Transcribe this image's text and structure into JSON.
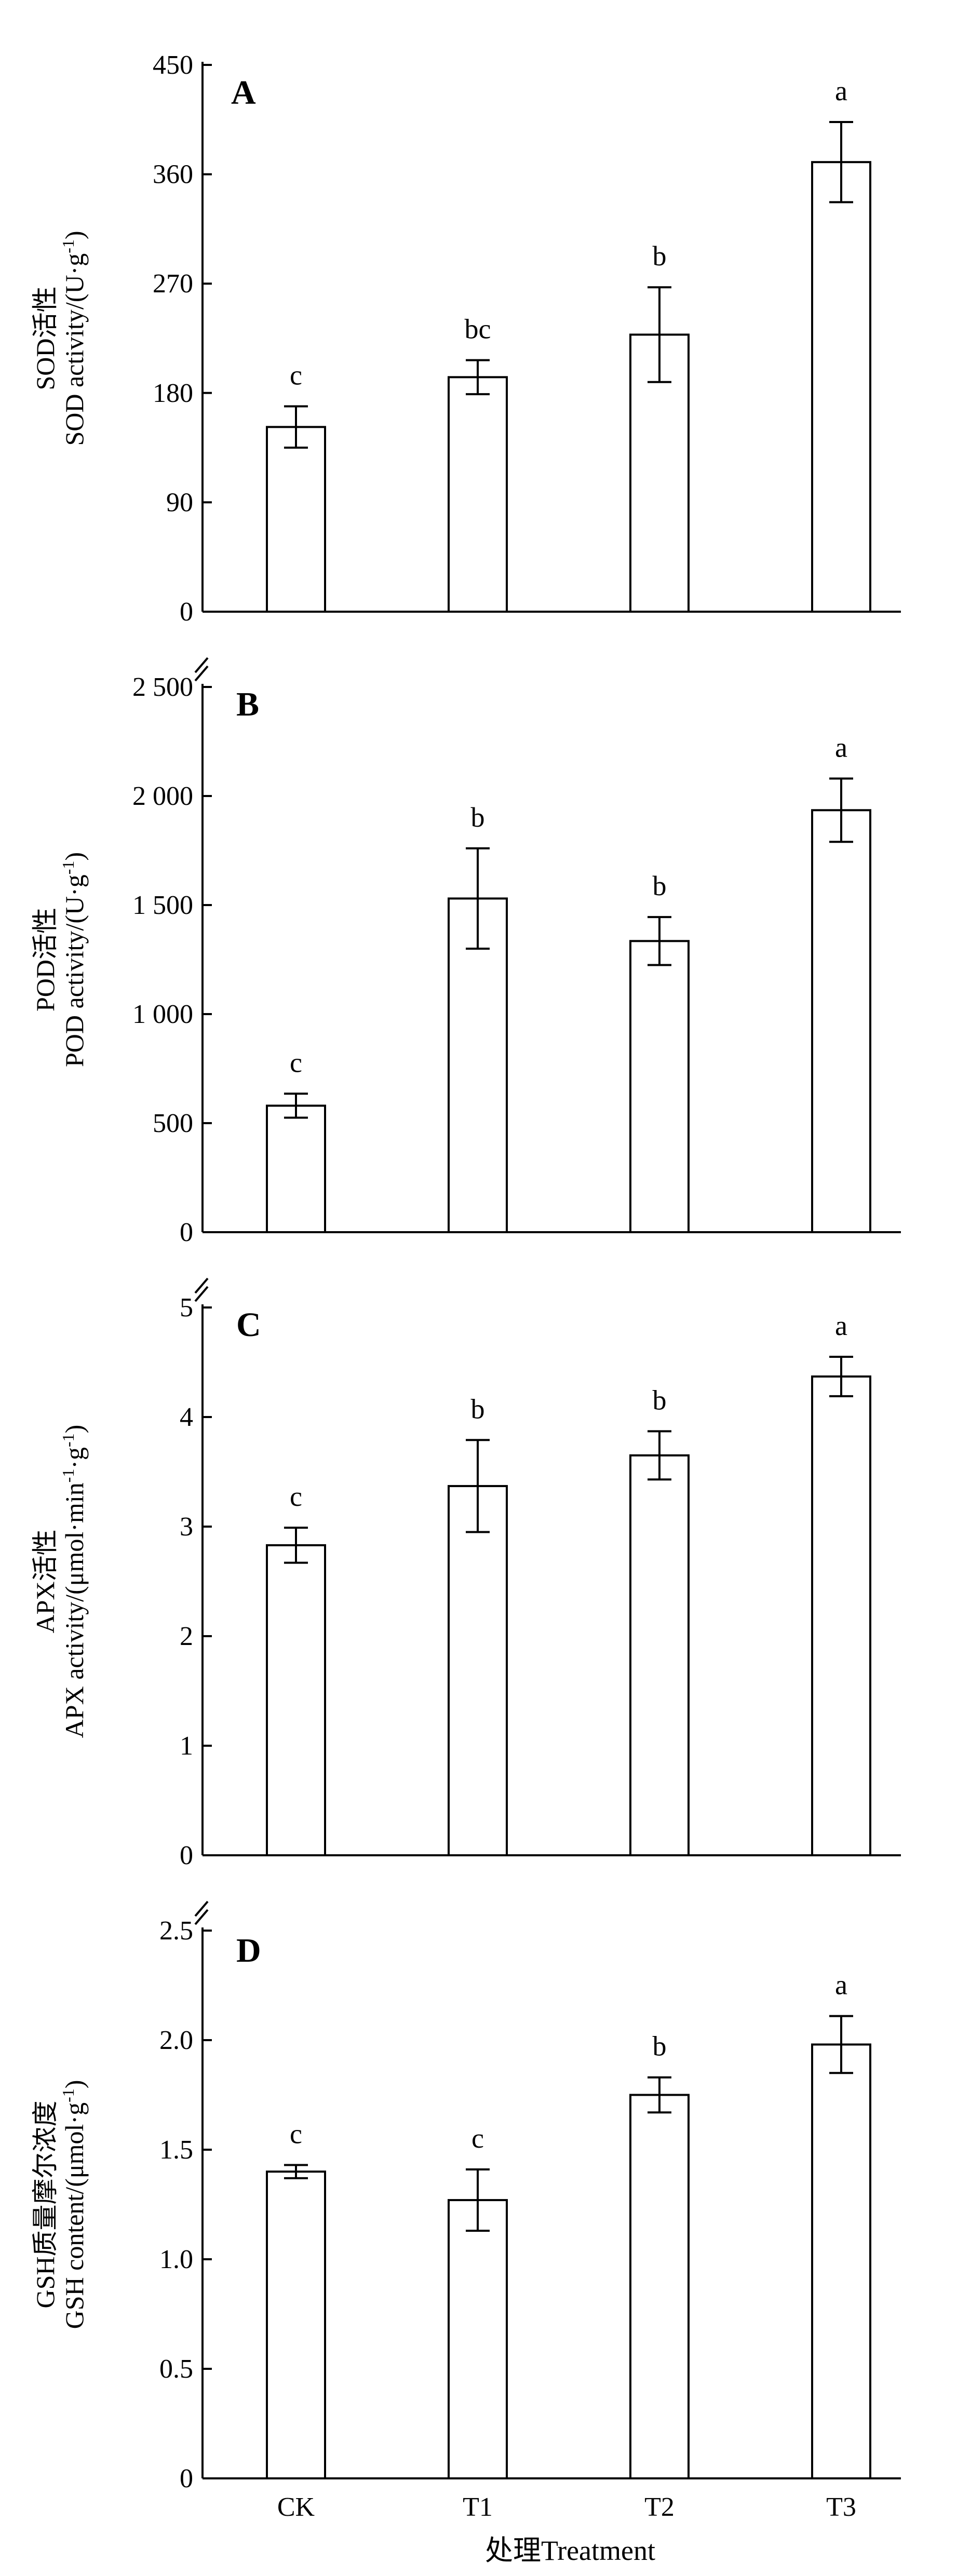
{
  "chart_data": [
    {
      "type": "bar",
      "panel_label": "A",
      "ylabel_cn": "SOD活性",
      "ylabel_en": "SOD activity/(U·g",
      "ylabel_sup": "-1",
      "ylabel_end": ")",
      "categories": [
        "CK",
        "T1",
        "T2",
        "T3"
      ],
      "values": [
        152,
        193,
        228,
        370
      ],
      "errors": [
        17,
        14,
        39,
        33
      ],
      "significance": [
        "c",
        "bc",
        "b",
        "a"
      ],
      "ylim": [
        0,
        450
      ],
      "yticks": [
        0,
        90,
        180,
        270,
        360,
        450
      ],
      "ytick_labels": [
        "0",
        "90",
        "180",
        "270",
        "360",
        "450"
      ]
    },
    {
      "type": "bar",
      "panel_label": "B",
      "ylabel_cn": "POD活性",
      "ylabel_en": "POD activity/(U·g",
      "ylabel_sup": "-1",
      "ylabel_end": ")",
      "categories": [
        "CK",
        "T1",
        "T2",
        "T3"
      ],
      "values": [
        580,
        1530,
        1335,
        1935
      ],
      "errors": [
        55,
        230,
        110,
        145
      ],
      "significance": [
        "c",
        "b",
        "b",
        "a"
      ],
      "ylim": [
        0,
        2500
      ],
      "yticks": [
        0,
        500,
        1000,
        1500,
        2000,
        2500
      ],
      "ytick_labels": [
        "0",
        "500",
        "1 000",
        "1 500",
        "2 000",
        "2 500"
      ]
    },
    {
      "type": "bar",
      "panel_label": "C",
      "ylabel_cn": "APX活性",
      "ylabel_en": "APX activity/(μmol·min",
      "ylabel_sup": "-1",
      "ylabel_mid": "·g",
      "ylabel_sup2": "-1",
      "ylabel_end": ")",
      "categories": [
        "CK",
        "T1",
        "T2",
        "T3"
      ],
      "values": [
        2.83,
        3.37,
        3.65,
        4.37
      ],
      "errors": [
        0.16,
        0.42,
        0.22,
        0.18
      ],
      "significance": [
        "c",
        "b",
        "b",
        "a"
      ],
      "ylim": [
        0,
        5
      ],
      "yticks": [
        0,
        1,
        2,
        3,
        4,
        5
      ],
      "ytick_labels": [
        "0",
        "1",
        "2",
        "3",
        "4",
        "5"
      ]
    },
    {
      "type": "bar",
      "panel_label": "D",
      "ylabel_cn": "GSH质量摩尔浓度",
      "ylabel_en": "GSH content/(μmol·g",
      "ylabel_sup": "-1",
      "ylabel_end": ")",
      "categories": [
        "CK",
        "T1",
        "T2",
        "T3"
      ],
      "values": [
        1.4,
        1.27,
        1.75,
        1.98
      ],
      "errors": [
        0.03,
        0.14,
        0.08,
        0.13
      ],
      "significance": [
        "c",
        "c",
        "b",
        "a"
      ],
      "ylim": [
        0,
        2.5
      ],
      "yticks": [
        0,
        0.5,
        1.0,
        1.5,
        2.0,
        2.5
      ],
      "ytick_labels": [
        "0",
        "0.5",
        "1.0",
        "1.5",
        "2.0",
        "2.5"
      ]
    }
  ],
  "xlabel": "处理Treatment"
}
